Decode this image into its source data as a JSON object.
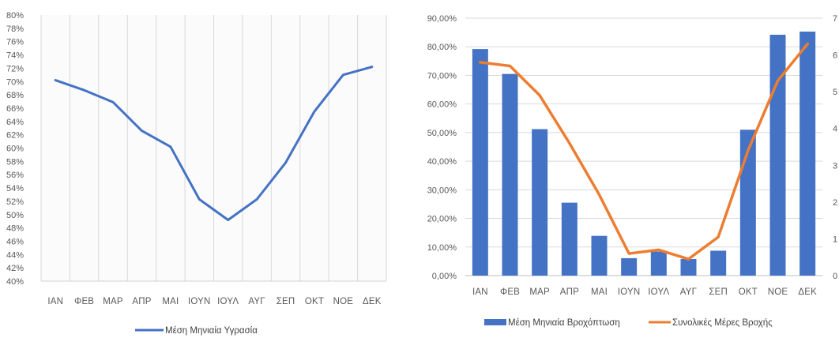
{
  "chart_data": [
    {
      "type": "line",
      "categories": [
        "ΙΑΝ",
        "ΦΕΒ",
        "ΜΑΡ",
        "ΑΠΡ",
        "ΜΑΙ",
        "ΙΟΥΝ",
        "ΙΟΥΛ",
        "ΑΥΓ",
        "ΣΕΠ",
        "ΟΚΤ",
        "ΝΟΕ",
        "ΔΕΚ"
      ],
      "series": [
        {
          "name": "Μέση Μηνιαία Υγρασία",
          "values": [
            70.2,
            68.7,
            66.9,
            62.6,
            60.2,
            52.3,
            49.2,
            52.3,
            57.8,
            65.5,
            71.0,
            72.2
          ],
          "color": "#4472c4"
        }
      ],
      "y_ticks": [
        "80%",
        "78%",
        "76%",
        "74%",
        "72%",
        "70%",
        "68%",
        "66%",
        "64%",
        "62%",
        "60%",
        "58%",
        "56%",
        "54%",
        "52%",
        "50%",
        "48%",
        "46%",
        "44%",
        "42%",
        "40%"
      ],
      "ylim": [
        40,
        80
      ],
      "grid": "vertical",
      "legend": "bottom"
    },
    {
      "type": "bar+line",
      "categories": [
        "ΙΑΝ",
        "ΦΕΒ",
        "ΜΑΡ",
        "ΑΠΡ",
        "ΜΑΙ",
        "ΙΟΥΝ",
        "ΙΟΥΛ",
        "ΑΥΓ",
        "ΣΕΠ",
        "ΟΚΤ",
        "ΝΟΕ",
        "ΔΕΚ"
      ],
      "series": [
        {
          "name": "Μέση Μηνιαία Βροχόπτωση",
          "type": "bar",
          "axis": "left",
          "values": [
            79.2,
            70.5,
            51.2,
            25.5,
            13.9,
            6.1,
            8.4,
            5.8,
            8.7,
            51.0,
            84.2,
            85.3
          ],
          "color": "#4472c4"
        },
        {
          "name": "Συνολικές Μέρες Βροχής",
          "type": "line",
          "axis": "right",
          "values": [
            5.8,
            5.7,
            4.9,
            3.6,
            2.2,
            0.6,
            0.7,
            0.45,
            1.05,
            3.4,
            5.3,
            6.3
          ],
          "color": "#ed7d31"
        }
      ],
      "y_ticks": [
        "90,00%",
        "80,00%",
        "70,00%",
        "60,00%",
        "50,00%",
        "40,00%",
        "30,00%",
        "20,00%",
        "10,00%",
        "0,00%"
      ],
      "ylim": [
        0,
        90
      ],
      "y2_ticks": [
        "7",
        "6",
        "5",
        "4",
        "3",
        "2",
        "1",
        "0"
      ],
      "y2lim": [
        0,
        7
      ],
      "grid": "horizontal",
      "legend": "bottom"
    }
  ]
}
